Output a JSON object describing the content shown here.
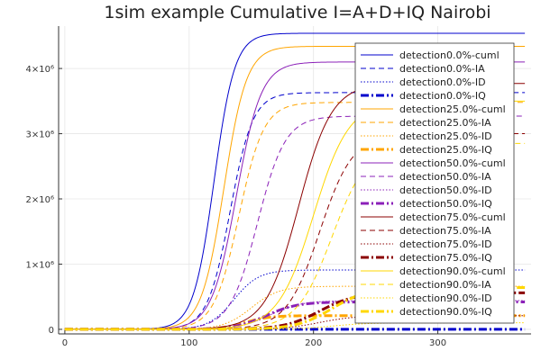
{
  "chart_data": {
    "type": "line",
    "title": "1sim example Cumulative I=A+D+IQ Nairobi",
    "xlabel": "",
    "ylabel": "",
    "xlim": [
      -5,
      375
    ],
    "ylim": [
      -70000,
      4650000
    ],
    "xticks": [
      0,
      100,
      200,
      300
    ],
    "yticks": [
      {
        "value": 0,
        "label": "0"
      },
      {
        "value": 1000000,
        "label": "1×10⁶"
      },
      {
        "value": 2000000,
        "label": "2×10⁶"
      },
      {
        "value": 3000000,
        "label": "3×10⁶"
      },
      {
        "value": 4000000,
        "label": "4×10⁶"
      }
    ],
    "grid": true,
    "legend_position": "top-right",
    "x_end": 370,
    "series": [
      {
        "name": "detection0.0%-cuml",
        "color": "#0000CC",
        "dash": "solid",
        "width": 1,
        "final": 4540000,
        "midpoint": 120,
        "rate": 0.12
      },
      {
        "name": "detection0.0%-IA",
        "color": "#0000CC",
        "dash": "dashed",
        "width": 1,
        "final": 3630000,
        "midpoint": 133,
        "rate": 0.11
      },
      {
        "name": "detection0.0%-ID",
        "color": "#0000CC",
        "dash": "dotted",
        "width": 1,
        "final": 910000,
        "midpoint": 136,
        "rate": 0.1
      },
      {
        "name": "detection0.0%-IQ",
        "color": "#0000CC",
        "dash": "dashdot",
        "width": 3,
        "final": 0,
        "midpoint": 150,
        "rate": 0.1
      },
      {
        "name": "detection25.0%-cuml",
        "color": "#FFA500",
        "dash": "solid",
        "width": 1,
        "final": 4340000,
        "midpoint": 128,
        "rate": 0.11
      },
      {
        "name": "detection25.0%-IA",
        "color": "#FFA500",
        "dash": "dashed",
        "width": 1,
        "final": 3480000,
        "midpoint": 140,
        "rate": 0.1
      },
      {
        "name": "detection25.0%-ID",
        "color": "#FFA500",
        "dash": "dotted",
        "width": 1,
        "final": 660000,
        "midpoint": 150,
        "rate": 0.09
      },
      {
        "name": "detection25.0%-IQ",
        "color": "#FFA500",
        "dash": "dashdot",
        "width": 3,
        "final": 210000,
        "midpoint": 145,
        "rate": 0.1
      },
      {
        "name": "detection50.0%-cuml",
        "color": "#8B20B8",
        "dash": "solid",
        "width": 1,
        "final": 4100000,
        "midpoint": 138,
        "rate": 0.1
      },
      {
        "name": "detection50.0%-IA",
        "color": "#8B20B8",
        "dash": "dashed",
        "width": 1,
        "final": 3270000,
        "midpoint": 155,
        "rate": 0.09
      },
      {
        "name": "detection50.0%-ID",
        "color": "#8B20B8",
        "dash": "dotted",
        "width": 1,
        "final": 440000,
        "midpoint": 165,
        "rate": 0.08
      },
      {
        "name": "detection50.0%-IQ",
        "color": "#8B20B8",
        "dash": "dashdot",
        "width": 3,
        "final": 420000,
        "midpoint": 162,
        "rate": 0.08
      },
      {
        "name": "detection75.0%-cuml",
        "color": "#8B0000",
        "dash": "solid",
        "width": 1,
        "final": 3770000,
        "midpoint": 188,
        "rate": 0.075
      },
      {
        "name": "detection75.0%-IA",
        "color": "#8B0000",
        "dash": "dashed",
        "width": 1,
        "final": 3000000,
        "midpoint": 205,
        "rate": 0.075
      },
      {
        "name": "detection75.0%-ID",
        "color": "#8B0000",
        "dash": "dotted",
        "width": 1,
        "final": 210000,
        "midpoint": 205,
        "rate": 0.07
      },
      {
        "name": "detection75.0%-IQ",
        "color": "#8B0000",
        "dash": "dashdot",
        "width": 3,
        "final": 560000,
        "midpoint": 205,
        "rate": 0.07
      },
      {
        "name": "detection90.0%-cuml",
        "color": "#FFD700",
        "dash": "solid",
        "width": 1,
        "final": 3500000,
        "midpoint": 200,
        "rate": 0.07
      },
      {
        "name": "detection90.0%-IA",
        "color": "#FFD700",
        "dash": "dashed",
        "width": 1,
        "final": 2850000,
        "midpoint": 215,
        "rate": 0.07
      },
      {
        "name": "detection90.0%-ID",
        "color": "#FFD700",
        "dash": "dotted",
        "width": 1,
        "final": 100000,
        "midpoint": 215,
        "rate": 0.07
      },
      {
        "name": "detection90.0%-IQ",
        "color": "#FFD700",
        "dash": "dashdot",
        "width": 3,
        "final": 640000,
        "midpoint": 215,
        "rate": 0.07
      }
    ]
  }
}
